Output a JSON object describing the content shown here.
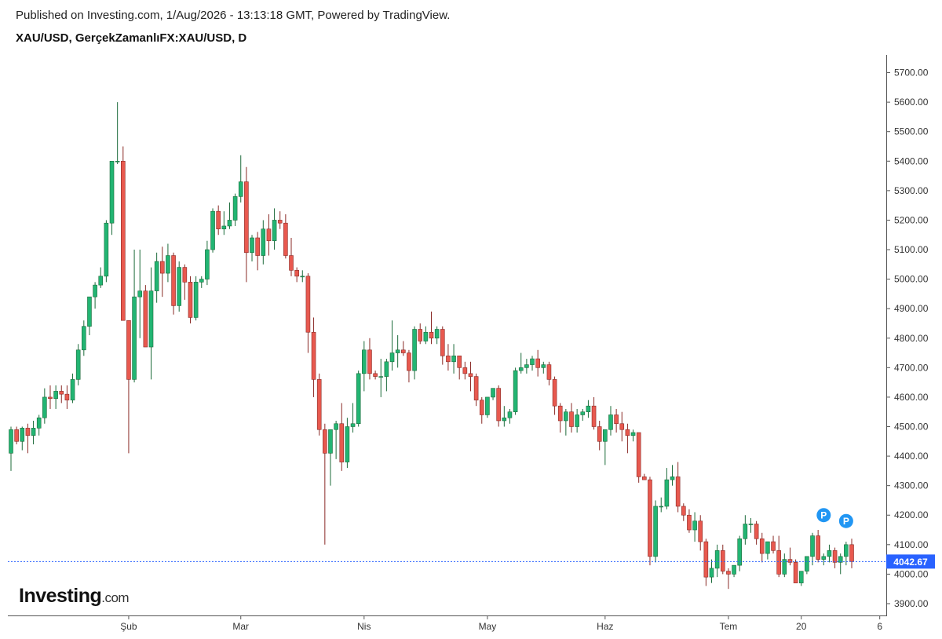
{
  "header": {
    "published": "Published on Investing.com, 1/Aug/2026 - 13:13:18 GMT, Powered by TradingView.",
    "symbol": "XAU/USD, GerçekZamanlıFX:XAU/USD, D"
  },
  "brand": {
    "name": "Investing",
    "suffix": ".com"
  },
  "colors": {
    "up": "#26a69a",
    "up_fill": "#22b573",
    "down": "#ef5350",
    "down_fill": "#e8594f",
    "wick": "#1c6b3a",
    "wick_down": "#8a2a26",
    "last_price_line": "#2962ff",
    "marker": "#2196f3",
    "axis": "#555555"
  },
  "chart_data": {
    "type": "candlestick",
    "interval": "D",
    "ylim": [
      3860,
      5760
    ],
    "y_ticks": [
      "5700.00",
      "5600.00",
      "5500.00",
      "5400.00",
      "5300.00",
      "5200.00",
      "5100.00",
      "5000.00",
      "4900.00",
      "4800.00",
      "4700.00",
      "4600.00",
      "4500.00",
      "4400.00",
      "4300.00",
      "4200.00",
      "4100.00",
      "4000.00",
      "3900.00"
    ],
    "x_ticks": [
      {
        "label": "Şub",
        "index": 21
      },
      {
        "label": "Mar",
        "index": 41
      },
      {
        "label": "Nis",
        "index": 63
      },
      {
        "label": "May",
        "index": 85
      },
      {
        "label": "Haz",
        "index": 106
      },
      {
        "label": "Tem",
        "index": 128
      },
      {
        "label": "20",
        "index": 141
      },
      {
        "label": "6",
        "index": 155
      }
    ],
    "last_price": "4042.67",
    "last_price_value": 4042.67,
    "markers": [
      {
        "label": "P",
        "index": 145,
        "value": 4200
      },
      {
        "label": "P",
        "index": 149,
        "value": 4180
      }
    ],
    "candles": [
      [
        4410,
        4500,
        4350,
        4490
      ],
      [
        4490,
        4500,
        4440,
        4450
      ],
      [
        4450,
        4500,
        4420,
        4495
      ],
      [
        4495,
        4510,
        4410,
        4470
      ],
      [
        4470,
        4520,
        4440,
        4495
      ],
      [
        4495,
        4540,
        4470,
        4530
      ],
      [
        4530,
        4630,
        4510,
        4600
      ],
      [
        4600,
        4640,
        4560,
        4595
      ],
      [
        4595,
        4640,
        4560,
        4620
      ],
      [
        4620,
        4640,
        4580,
        4610
      ],
      [
        4610,
        4640,
        4560,
        4590
      ],
      [
        4590,
        4680,
        4580,
        4660
      ],
      [
        4660,
        4780,
        4640,
        4760
      ],
      [
        4760,
        4860,
        4740,
        4840
      ],
      [
        4840,
        4940,
        4810,
        4940
      ],
      [
        4940,
        4990,
        4900,
        4980
      ],
      [
        4980,
        5040,
        4970,
        5010
      ],
      [
        5010,
        5200,
        4990,
        5190
      ],
      [
        5190,
        5400,
        5150,
        5400
      ],
      [
        5400,
        5600,
        5390,
        5400
      ],
      [
        5400,
        5450,
        4860,
        4860
      ],
      [
        4860,
        4860,
        4410,
        4660
      ],
      [
        4660,
        5100,
        4650,
        4940
      ],
      [
        4940,
        5100,
        4800,
        4960
      ],
      [
        4960,
        4980,
        4770,
        4770
      ],
      [
        4770,
        5040,
        4660,
        4960
      ],
      [
        4960,
        5090,
        4920,
        5060
      ],
      [
        5060,
        5110,
        4940,
        5020
      ],
      [
        5020,
        5120,
        4990,
        5080
      ],
      [
        5080,
        5090,
        4880,
        4910
      ],
      [
        4910,
        5060,
        4890,
        5040
      ],
      [
        5040,
        5050,
        4930,
        4990
      ],
      [
        4990,
        5010,
        4850,
        4870
      ],
      [
        4870,
        5010,
        4860,
        4990
      ],
      [
        4990,
        5010,
        4970,
        5000
      ],
      [
        5000,
        5130,
        4980,
        5100
      ],
      [
        5100,
        5240,
        5090,
        5230
      ],
      [
        5230,
        5250,
        5150,
        5170
      ],
      [
        5170,
        5230,
        5150,
        5180
      ],
      [
        5180,
        5260,
        5170,
        5200
      ],
      [
        5200,
        5290,
        5180,
        5280
      ],
      [
        5280,
        5420,
        5260,
        5330
      ],
      [
        5330,
        5380,
        4990,
        5090
      ],
      [
        5090,
        5150,
        5060,
        5140
      ],
      [
        5140,
        5160,
        5030,
        5080
      ],
      [
        5080,
        5200,
        5050,
        5170
      ],
      [
        5170,
        5220,
        5080,
        5130
      ],
      [
        5130,
        5240,
        5100,
        5200
      ],
      [
        5200,
        5230,
        5170,
        5190
      ],
      [
        5190,
        5220,
        5070,
        5080
      ],
      [
        5080,
        5140,
        5010,
        5030
      ],
      [
        5030,
        5040,
        4990,
        5010
      ],
      [
        5010,
        5030,
        4990,
        5010
      ],
      [
        5010,
        5020,
        4750,
        4820
      ],
      [
        4820,
        4870,
        4600,
        4660
      ],
      [
        4660,
        4680,
        4470,
        4490
      ],
      [
        4490,
        4510,
        4100,
        4410
      ],
      [
        4410,
        4490,
        4300,
        4490
      ],
      [
        4490,
        4520,
        4390,
        4510
      ],
      [
        4510,
        4580,
        4350,
        4380
      ],
      [
        4380,
        4530,
        4360,
        4500
      ],
      [
        4500,
        4580,
        4480,
        4510
      ],
      [
        4510,
        4690,
        4500,
        4680
      ],
      [
        4680,
        4790,
        4620,
        4760
      ],
      [
        4760,
        4800,
        4660,
        4680
      ],
      [
        4680,
        4690,
        4660,
        4670
      ],
      [
        4670,
        4730,
        4600,
        4670
      ],
      [
        4670,
        4730,
        4620,
        4720
      ],
      [
        4720,
        4860,
        4690,
        4750
      ],
      [
        4750,
        4810,
        4700,
        4760
      ],
      [
        4760,
        4790,
        4740,
        4750
      ],
      [
        4750,
        4760,
        4650,
        4690
      ],
      [
        4690,
        4840,
        4660,
        4830
      ],
      [
        4830,
        4850,
        4780,
        4790
      ],
      [
        4790,
        4840,
        4780,
        4820
      ],
      [
        4820,
        4890,
        4780,
        4800
      ],
      [
        4800,
        4840,
        4780,
        4830
      ],
      [
        4830,
        4840,
        4710,
        4740
      ],
      [
        4740,
        4780,
        4690,
        4720
      ],
      [
        4720,
        4780,
        4680,
        4740
      ],
      [
        4740,
        4740,
        4660,
        4700
      ],
      [
        4700,
        4720,
        4660,
        4680
      ],
      [
        4680,
        4720,
        4620,
        4670
      ],
      [
        4670,
        4680,
        4570,
        4590
      ],
      [
        4590,
        4600,
        4510,
        4540
      ],
      [
        4540,
        4600,
        4530,
        4600
      ],
      [
        4600,
        4630,
        4590,
        4630
      ],
      [
        4630,
        4640,
        4500,
        4520
      ],
      [
        4520,
        4570,
        4500,
        4530
      ],
      [
        4530,
        4560,
        4510,
        4550
      ],
      [
        4550,
        4700,
        4540,
        4690
      ],
      [
        4690,
        4750,
        4680,
        4700
      ],
      [
        4700,
        4730,
        4680,
        4710
      ],
      [
        4710,
        4740,
        4690,
        4730
      ],
      [
        4730,
        4760,
        4670,
        4700
      ],
      [
        4700,
        4720,
        4680,
        4710
      ],
      [
        4710,
        4720,
        4640,
        4660
      ],
      [
        4660,
        4670,
        4540,
        4570
      ],
      [
        4570,
        4580,
        4480,
        4520
      ],
      [
        4520,
        4560,
        4470,
        4550
      ],
      [
        4550,
        4580,
        4480,
        4500
      ],
      [
        4500,
        4560,
        4480,
        4540
      ],
      [
        4540,
        4560,
        4520,
        4550
      ],
      [
        4550,
        4590,
        4530,
        4570
      ],
      [
        4570,
        4600,
        4490,
        4500
      ],
      [
        4500,
        4520,
        4420,
        4450
      ],
      [
        4450,
        4490,
        4370,
        4490
      ],
      [
        4490,
        4570,
        4470,
        4540
      ],
      [
        4540,
        4560,
        4480,
        4510
      ],
      [
        4510,
        4550,
        4450,
        4490
      ],
      [
        4490,
        4510,
        4410,
        4470
      ],
      [
        4470,
        4490,
        4450,
        4480
      ],
      [
        4480,
        4480,
        4310,
        4330
      ],
      [
        4330,
        4340,
        4320,
        4320
      ],
      [
        4320,
        4330,
        4030,
        4060
      ],
      [
        4060,
        4250,
        4040,
        4230
      ],
      [
        4230,
        4260,
        4210,
        4230
      ],
      [
        4230,
        4360,
        4220,
        4320
      ],
      [
        4320,
        4370,
        4300,
        4330
      ],
      [
        4330,
        4380,
        4210,
        4230
      ],
      [
        4230,
        4240,
        4180,
        4200
      ],
      [
        4200,
        4220,
        4140,
        4150
      ],
      [
        4150,
        4210,
        4110,
        4180
      ],
      [
        4180,
        4200,
        4080,
        4110
      ],
      [
        4110,
        4120,
        3960,
        3990
      ],
      [
        3990,
        4050,
        3970,
        4020
      ],
      [
        4020,
        4100,
        3990,
        4080
      ],
      [
        4080,
        4100,
        4000,
        4010
      ],
      [
        4010,
        4020,
        3950,
        4000
      ],
      [
        4000,
        4030,
        3990,
        4030
      ],
      [
        4030,
        4130,
        4010,
        4120
      ],
      [
        4120,
        4200,
        4100,
        4170
      ],
      [
        4170,
        4190,
        4140,
        4170
      ],
      [
        4170,
        4180,
        4100,
        4120
      ],
      [
        4120,
        4140,
        4040,
        4070
      ],
      [
        4070,
        4110,
        4050,
        4110
      ],
      [
        4110,
        4130,
        4070,
        4080
      ],
      [
        4080,
        4130,
        3990,
        4000
      ],
      [
        4000,
        4070,
        3990,
        4050
      ],
      [
        4050,
        4090,
        4030,
        4040
      ],
      [
        4040,
        4050,
        3970,
        3970
      ],
      [
        3970,
        4010,
        3960,
        4010
      ],
      [
        4010,
        4060,
        4000,
        4060
      ],
      [
        4060,
        4140,
        4030,
        4130
      ],
      [
        4130,
        4150,
        4040,
        4050
      ],
      [
        4050,
        4070,
        4030,
        4060
      ],
      [
        4060,
        4100,
        4040,
        4080
      ],
      [
        4080,
        4090,
        4020,
        4040
      ],
      [
        4040,
        4070,
        4000,
        4060
      ],
      [
        4060,
        4110,
        4030,
        4100
      ],
      [
        4100,
        4120,
        4020,
        4043
      ]
    ]
  }
}
